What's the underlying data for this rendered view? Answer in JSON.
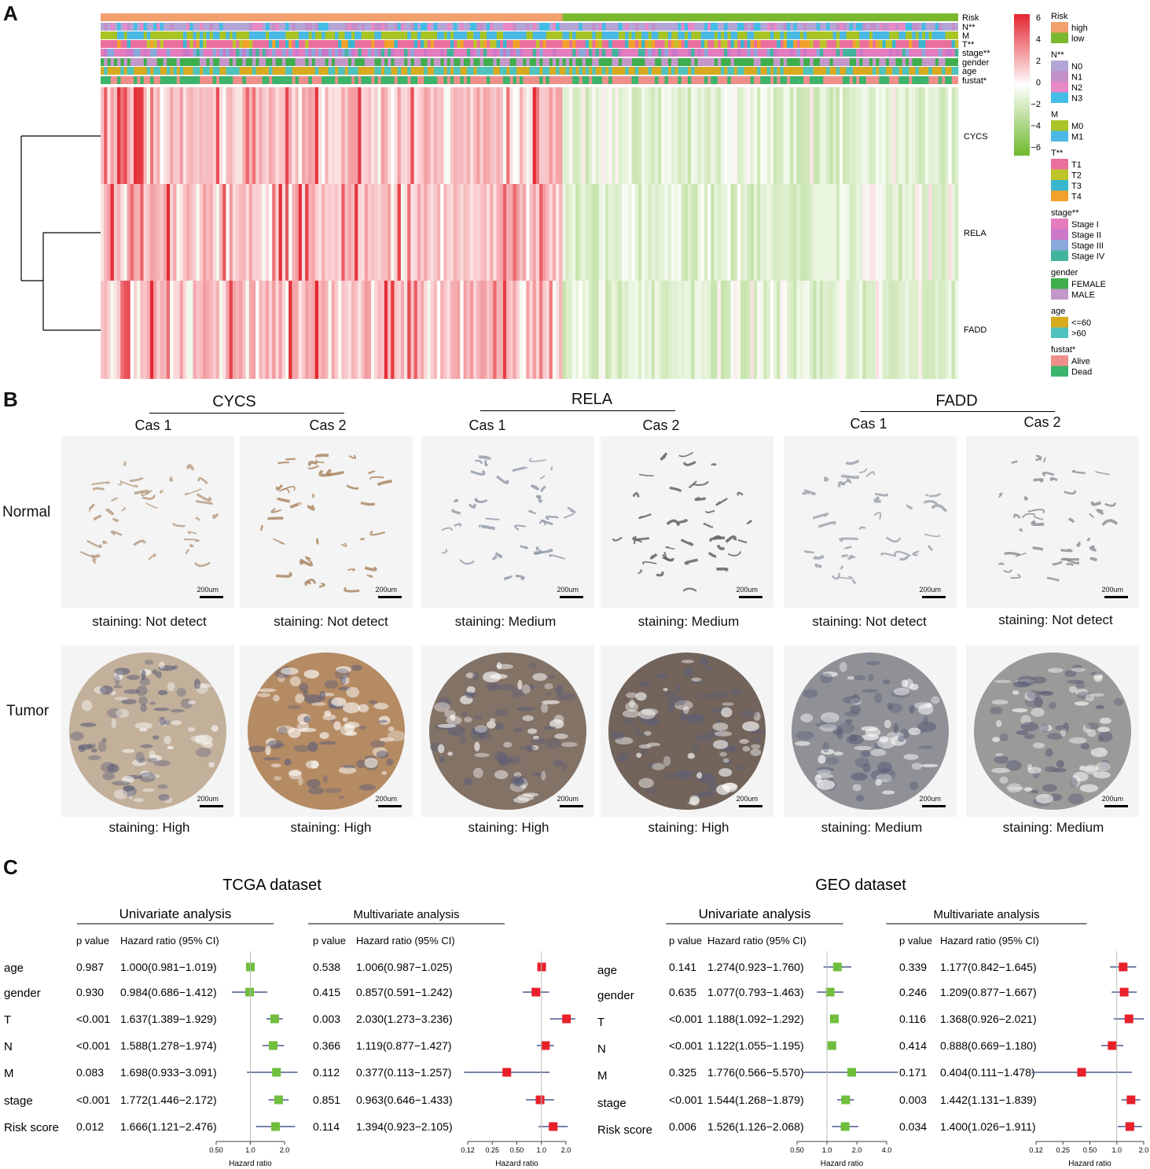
{
  "panels": {
    "a": "A",
    "b": "B",
    "c": "C"
  },
  "heatmap": {
    "annotation_rows": [
      "Risk",
      "N**",
      "M",
      "T**",
      "stage**",
      "gender",
      "age",
      "fustat*"
    ],
    "genes": [
      "CYCS",
      "RELA",
      "FADD"
    ],
    "scale_ticks": [
      "6",
      "4",
      "2",
      "0",
      "−2",
      "−4",
      "−6"
    ],
    "colors": {
      "high": "#f1a06e",
      "low": "#7cb82f",
      "up": "#e4252f",
      "down": "#6fb82c"
    },
    "legend": [
      {
        "title": "Risk",
        "items": [
          {
            "label": "high",
            "color": "#f1a06e"
          },
          {
            "label": "low",
            "color": "#7cb82f"
          }
        ]
      },
      {
        "title": "N**",
        "items": [
          {
            "label": "N0",
            "color": "#b3a6d6"
          },
          {
            "label": "N1",
            "color": "#c38fc8"
          },
          {
            "label": "N2",
            "color": "#e789c6"
          },
          {
            "label": "N3",
            "color": "#43bde6"
          }
        ]
      },
      {
        "title": "M",
        "items": [
          {
            "label": "M0",
            "color": "#a8c525"
          },
          {
            "label": "M1",
            "color": "#4ab8e4"
          }
        ]
      },
      {
        "title": "T**",
        "items": [
          {
            "label": "T1",
            "color": "#ea6f9d"
          },
          {
            "label": "T2",
            "color": "#bfc42a"
          },
          {
            "label": "T3",
            "color": "#39b6ce"
          },
          {
            "label": "T4",
            "color": "#f3a12b"
          }
        ]
      },
      {
        "title": "stage**",
        "items": [
          {
            "label": "Stage I",
            "color": "#e47cbd"
          },
          {
            "label": "Stage II",
            "color": "#cc77c8"
          },
          {
            "label": "Stage III",
            "color": "#89a9dd"
          },
          {
            "label": "Stage IV",
            "color": "#44b39b"
          }
        ]
      },
      {
        "title": "gender",
        "items": [
          {
            "label": "FEMALE",
            "color": "#3fae4c"
          },
          {
            "label": "MALE",
            "color": "#c497c9"
          }
        ]
      },
      {
        "title": "age",
        "items": [
          {
            "label": "<=60",
            "color": "#d8ab1f"
          },
          {
            "label": ">60",
            "color": "#4fc3bc"
          }
        ]
      },
      {
        "title": "fustat*",
        "items": [
          {
            "label": "Alive",
            "color": "#ef8f8a"
          },
          {
            "label": "Dead",
            "color": "#3db46b"
          }
        ]
      }
    ]
  },
  "ihc": {
    "genes": [
      {
        "name": "CYCS",
        "cases": [
          "Cas 1",
          "Cas 2"
        ]
      },
      {
        "name": "RELA",
        "cases": [
          "Cas 1",
          "Cas 2"
        ]
      },
      {
        "name": "FADD",
        "cases": [
          "Cas 1",
          "Cas 2"
        ]
      }
    ],
    "rows": [
      "Normal",
      "Tumor"
    ],
    "scale_bar": "200um",
    "normal_staining": [
      "staining: Not detect",
      "staining: Not detect",
      "staining: Medium",
      "staining: Medium",
      "staining: Not detect",
      "staining: Not detect"
    ],
    "tumor_staining": [
      "staining: High",
      "staining: High",
      "staining: High",
      "staining: High",
      "staining: Medium",
      "staining: Medium"
    ],
    "tile_colors": {
      "normal": [
        "#b59a80",
        "#a8825c",
        "#8f97a6",
        "#5a5a5a",
        "#9aa0aa",
        "#8a8a92"
      ],
      "tumor": [
        "#b8a38b",
        "#a9784a",
        "#6e5a4c",
        "#5a4a40",
        "#7d7f86",
        "#8c8a88"
      ]
    }
  },
  "forest": {
    "rows": [
      "age",
      "gender",
      "T",
      "N",
      "M",
      "stage",
      "Risk score"
    ],
    "col_p": "p value",
    "col_hr": "Hazard ratio (95% CI)",
    "axis_label": "Hazard ratio",
    "univ_color": "#6fbe3c",
    "multi_color": "#e8202a",
    "line_color": "#4a5a8c",
    "datasets": [
      {
        "title": "TCGA dataset",
        "univariate": {
          "title": "Univariate analysis",
          "ticks": [
            0.5,
            1.0,
            2.0
          ],
          "tick_labels": [
            "0.50",
            "1.0",
            "2.0"
          ],
          "range": [
            0.5,
            2.0
          ],
          "p": [
            "0.987",
            "0.930",
            "<0.001",
            "<0.001",
            "0.083",
            "<0.001",
            "0.012"
          ],
          "hr_text": [
            "1.000(0.981−1.019)",
            "0.984(0.686−1.412)",
            "1.637(1.389−1.929)",
            "1.588(1.278−1.974)",
            "1.698(0.933−3.091)",
            "1.772(1.446−2.172)",
            "1.666(1.121−2.476)"
          ],
          "hr": [
            1.0,
            0.984,
            1.637,
            1.588,
            1.698,
            1.772,
            1.666
          ],
          "lo": [
            0.981,
            0.686,
            1.389,
            1.278,
            0.933,
            1.446,
            1.121
          ],
          "hi": [
            1.019,
            1.412,
            1.929,
            1.974,
            3.091,
            2.172,
            2.476
          ]
        },
        "multivariate": {
          "title": "Multivariate analysis",
          "ticks": [
            0.125,
            0.25,
            0.5,
            1.0,
            2.0
          ],
          "tick_labels": [
            "0.12",
            "0.25",
            "0.50",
            "1.0",
            "2.0"
          ],
          "range": [
            0.125,
            2.0
          ],
          "p": [
            "0.538",
            "0.415",
            "0.003",
            "0.366",
            "0.112",
            "0.851",
            "0.114"
          ],
          "hr_text": [
            "1.006(0.987−1.025)",
            "0.857(0.591−1.242)",
            "2.030(1.273−3.236)",
            "1.119(0.877−1.427)",
            "0.377(0.113−1.257)",
            "0.963(0.646−1.433)",
            "1.394(0.923−2.105)"
          ],
          "hr": [
            1.006,
            0.857,
            2.03,
            1.119,
            0.377,
            0.963,
            1.394
          ],
          "lo": [
            0.987,
            0.591,
            1.273,
            0.877,
            0.113,
            0.646,
            0.923
          ],
          "hi": [
            1.025,
            1.242,
            3.236,
            1.427,
            1.257,
            1.433,
            2.105
          ]
        }
      },
      {
        "title": "GEO dataset",
        "univariate": {
          "title": "Univariate analysis",
          "ticks": [
            0.5,
            1.0,
            2.0,
            4.0
          ],
          "tick_labels": [
            "0.50",
            "1.0",
            "2.0",
            "4.0"
          ],
          "range": [
            0.5,
            4.0
          ],
          "p": [
            "0.141",
            "0.635",
            "<0.001",
            "<0.001",
            "0.325",
            "<0.001",
            "0.006"
          ],
          "hr_text": [
            "1.274(0.923−1.760)",
            "1.077(0.793−1.463)",
            "1.188(1.092−1.292)",
            "1.122(1.055−1.195)",
            "1.776(0.566−5.570)",
            "1.544(1.268−1.879)",
            "1.526(1.126−2.068)"
          ],
          "hr": [
            1.274,
            1.077,
            1.188,
            1.122,
            1.776,
            1.544,
            1.526
          ],
          "lo": [
            0.923,
            0.793,
            1.092,
            1.055,
            0.566,
            1.268,
            1.126
          ],
          "hi": [
            1.76,
            1.463,
            1.292,
            1.195,
            5.57,
            1.879,
            2.068
          ]
        },
        "multivariate": {
          "title": "Multivariate analysis",
          "ticks": [
            0.125,
            0.25,
            0.5,
            1.0,
            2.0
          ],
          "tick_labels": [
            "0.12",
            "0.25",
            "0.50",
            "1.0",
            "2.0"
          ],
          "range": [
            0.125,
            2.0
          ],
          "p": [
            "0.339",
            "0.246",
            "0.116",
            "0.414",
            "0.171",
            "0.003",
            "0.034"
          ],
          "hr_text": [
            "1.177(0.842−1.645)",
            "1.209(0.877−1.667)",
            "1.368(0.926−2.021)",
            "0.888(0.669−1.180)",
            "0.404(0.111−1.478)",
            "1.442(1.131−1.839)",
            "1.400(1.026−1.911)"
          ],
          "hr": [
            1.177,
            1.209,
            1.368,
            0.888,
            0.404,
            1.442,
            1.4
          ],
          "lo": [
            0.842,
            0.877,
            0.926,
            0.669,
            0.111,
            1.131,
            1.026
          ],
          "hi": [
            1.645,
            1.667,
            2.021,
            1.18,
            1.478,
            1.839,
            1.911
          ]
        }
      }
    ]
  }
}
